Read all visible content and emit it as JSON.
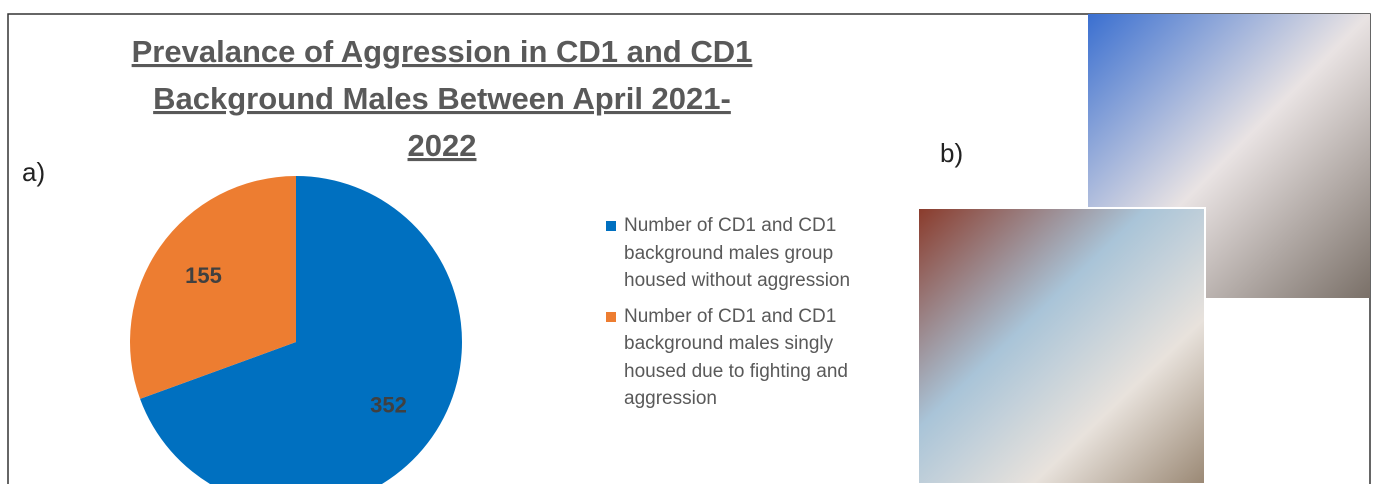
{
  "chart_data": {
    "type": "pie",
    "title": [
      "Prevalance of Aggression in CD1 and CD1",
      "Background Males Between April 2021-",
      "2022"
    ],
    "series": [
      {
        "name": "Number of CD1 and CD1 background males group housed without aggression",
        "color": "#0070c0",
        "values": [
          352
        ]
      },
      {
        "name": "Number of CD1 and CD1 background males singly housed due to fighting and aggression",
        "color": "#ed7d31",
        "values": [
          155
        ]
      }
    ],
    "legend": "right"
  },
  "panel_labels": [
    "a)",
    "b)"
  ]
}
